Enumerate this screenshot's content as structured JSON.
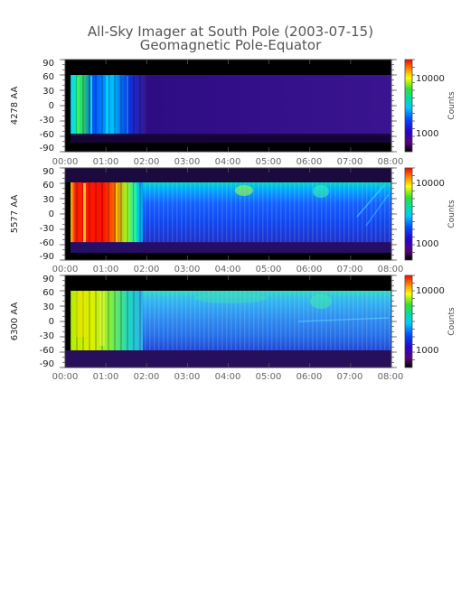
{
  "title_line1": "All-Sky Imager at South Pole (2003-07-15)",
  "title_line2": "Geomagnetic Pole-Equator",
  "chart_data": [
    {
      "type": "heatmap",
      "ylabel": "4278 AA",
      "x_ticks": [
        "00:00",
        "01:00",
        "02:00",
        "03:00",
        "04:00",
        "05:00",
        "06:00",
        "07:00",
        "08:00"
      ],
      "y_ticks": [
        90,
        60,
        30,
        0,
        -30,
        -60,
        -90
      ],
      "ylim": [
        -90,
        90
      ],
      "colorbar": {
        "label": "Counts",
        "scale": "log",
        "ticks": [
          1000,
          10000
        ]
      }
    },
    {
      "type": "heatmap",
      "ylabel": "5577 AA",
      "x_ticks": [
        "00:00",
        "01:00",
        "02:00",
        "03:00",
        "04:00",
        "05:00",
        "06:00",
        "07:00",
        "08:00"
      ],
      "y_ticks": [
        90,
        60,
        30,
        0,
        -30,
        -60,
        -90
      ],
      "ylim": [
        -90,
        90
      ],
      "colorbar": {
        "label": "Counts",
        "scale": "log",
        "ticks": [
          1000,
          10000
        ]
      }
    },
    {
      "type": "heatmap",
      "ylabel": "6300 AA",
      "x_ticks": [
        "00:00",
        "01:00",
        "02:00",
        "03:00",
        "04:00",
        "05:00",
        "06:00",
        "07:00",
        "08:00"
      ],
      "y_ticks": [
        90,
        60,
        30,
        0,
        -30,
        -60,
        -90
      ],
      "ylim": [
        -90,
        90
      ],
      "colorbar": {
        "label": "Counts",
        "scale": "log",
        "ticks": [
          1000,
          10000
        ]
      }
    }
  ]
}
